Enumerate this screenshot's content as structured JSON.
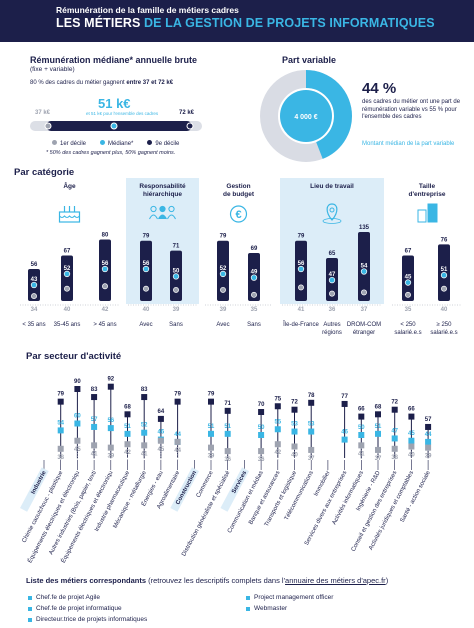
{
  "header": {
    "subtitle": "Rémunération de la famille de métiers cadres",
    "title_plain": "LES MÉTIERS",
    "title_accent": "DE LA GESTION DE PROJETS INFORMATIQUES"
  },
  "remuneration": {
    "title": "Rémunération médiane* annuelle brute",
    "subtitle": "(fixe + variable)",
    "range_text_prefix": "80 % des cadres du métier gagnent ",
    "range_text_strong": "entre 37 et 72 k€",
    "median": "51 k€",
    "median_caption": "et 51 k€ pour l'ensemble des cadres",
    "low": "37 k€",
    "high": "72 k€",
    "legend": [
      "1er décile",
      "Médiane*",
      "9e décile"
    ],
    "footnote": "* 50% des cadres gagnent plus, 50% gagnent moins.",
    "scale": [
      30,
      80
    ],
    "overall_median": 51
  },
  "part_variable": {
    "title": "Part variable",
    "percent": "44 %",
    "percent_value": 44,
    "text": "des cadres du métier ont une part de rémunération variable vs 55 % pour l'ensemble des cadres",
    "donut_label": "4 000 €",
    "median_label": "Montant médian de la part variable"
  },
  "categorie": {
    "title": "Par catégorie",
    "groups": [
      {
        "title": "Âge",
        "icon": "cake-icon",
        "highlight": false
      },
      {
        "title": "Responsabilité hiérarchique",
        "icon": "team-icon",
        "highlight": true
      },
      {
        "title": "Gestion de budget",
        "icon": "euro-icon",
        "highlight": false
      },
      {
        "title": "Lieu de travail",
        "icon": "location-pin-icon",
        "highlight": true
      },
      {
        "title": "Taille d'entreprise",
        "icon": "building-icon",
        "highlight": false
      }
    ]
  },
  "chart_data": [
    {
      "type": "range",
      "name": "Par catégorie",
      "categories": [
        "< 35 ans",
        "35-45 ans",
        "> 45 ans",
        "Avec",
        "Sans",
        "Avec",
        "Sans",
        "Île-de-France",
        "Autres régions",
        "DROM-COM étranger",
        "< 250 salarié.e.s",
        "≥ 250 salarié.e.s"
      ],
      "series": [
        {
          "name": "1er décile",
          "values": [
            34,
            40,
            42,
            40,
            39,
            39,
            35,
            41,
            36,
            37,
            35,
            40
          ]
        },
        {
          "name": "Médiane*",
          "values": [
            43,
            52,
            56,
            56,
            50,
            52,
            49,
            56,
            47,
            54,
            45,
            51
          ]
        },
        {
          "name": "9e décile",
          "values": [
            56,
            67,
            80,
            79,
            71,
            79,
            69,
            79,
            65,
            135,
            67,
            76
          ]
        }
      ]
    },
    {
      "type": "range",
      "name": "Par secteur d'activité",
      "categories": [
        "Industrie",
        "Chimie caoutchouc - plastique",
        "Équipements électriques et électroniques",
        "Autres industries (Bois, papier, textile, caoutchouc…)",
        "Équipements électriques et électroniques",
        "Industrie pharmaceutique",
        "Mécanique - métallurgie",
        "Énergies - eau",
        "Agroalimentaire",
        "Construction",
        "Commerce",
        "Distribution généraliste et spécialisée",
        "Services",
        "Communication et médias",
        "Banque et assurances",
        "Transports et logistique",
        "Télécommunications",
        "Immobilier",
        "Services divers aux entreprises",
        "Activités informatiques",
        "Ingénierie - R&D",
        "Conseil et gestion des entreprises",
        "Activités juridiques et comptables",
        "Santé - action sociale"
      ],
      "series": [
        {
          "name": "1er décile",
          "values": [
            null,
            38,
            45,
            41,
            39,
            42,
            41,
            45,
            44,
            null,
            39,
            36,
            null,
            36,
            42,
            40,
            37,
            null,
            null,
            41,
            37,
            38,
            40,
            39
          ]
        },
        {
          "name": "Médiane*",
          "values": [
            null,
            54,
            60,
            57,
            56,
            51,
            52,
            46,
            44,
            null,
            51,
            51,
            null,
            50,
            55,
            53,
            53,
            null,
            46,
            50,
            51,
            47,
            45,
            44
          ]
        },
        {
          "name": "9e décile",
          "values": [
            null,
            79,
            90,
            83,
            92,
            68,
            83,
            64,
            79,
            null,
            79,
            71,
            null,
            70,
            75,
            72,
            78,
            null,
            77,
            66,
            68,
            72,
            66,
            57
          ]
        }
      ],
      "sector_headers": [
        "Industrie",
        "Construction",
        "Commerce",
        "Services"
      ]
    }
  ],
  "secteur": {
    "title": "Par secteur d'activité"
  },
  "metiers": {
    "title_strong": "Liste des métiers correspondants",
    "title_rest": " (retrouvez les descriptifs complets dans l'",
    "link": "annuaire des métiers d'apec.fr",
    "title_end": ")",
    "col1": [
      "Chef.fe de projet Agile",
      "Chef.fe de projet informatique",
      "Directeur.trice de projets informatiques"
    ],
    "col2": [
      "Project management officer",
      "Webmaster"
    ]
  },
  "colors": {
    "navy": "#1c1f4a",
    "cyan": "#3ab6e4",
    "grey": "#9ea3b0",
    "highlight": "#dcedf8"
  }
}
